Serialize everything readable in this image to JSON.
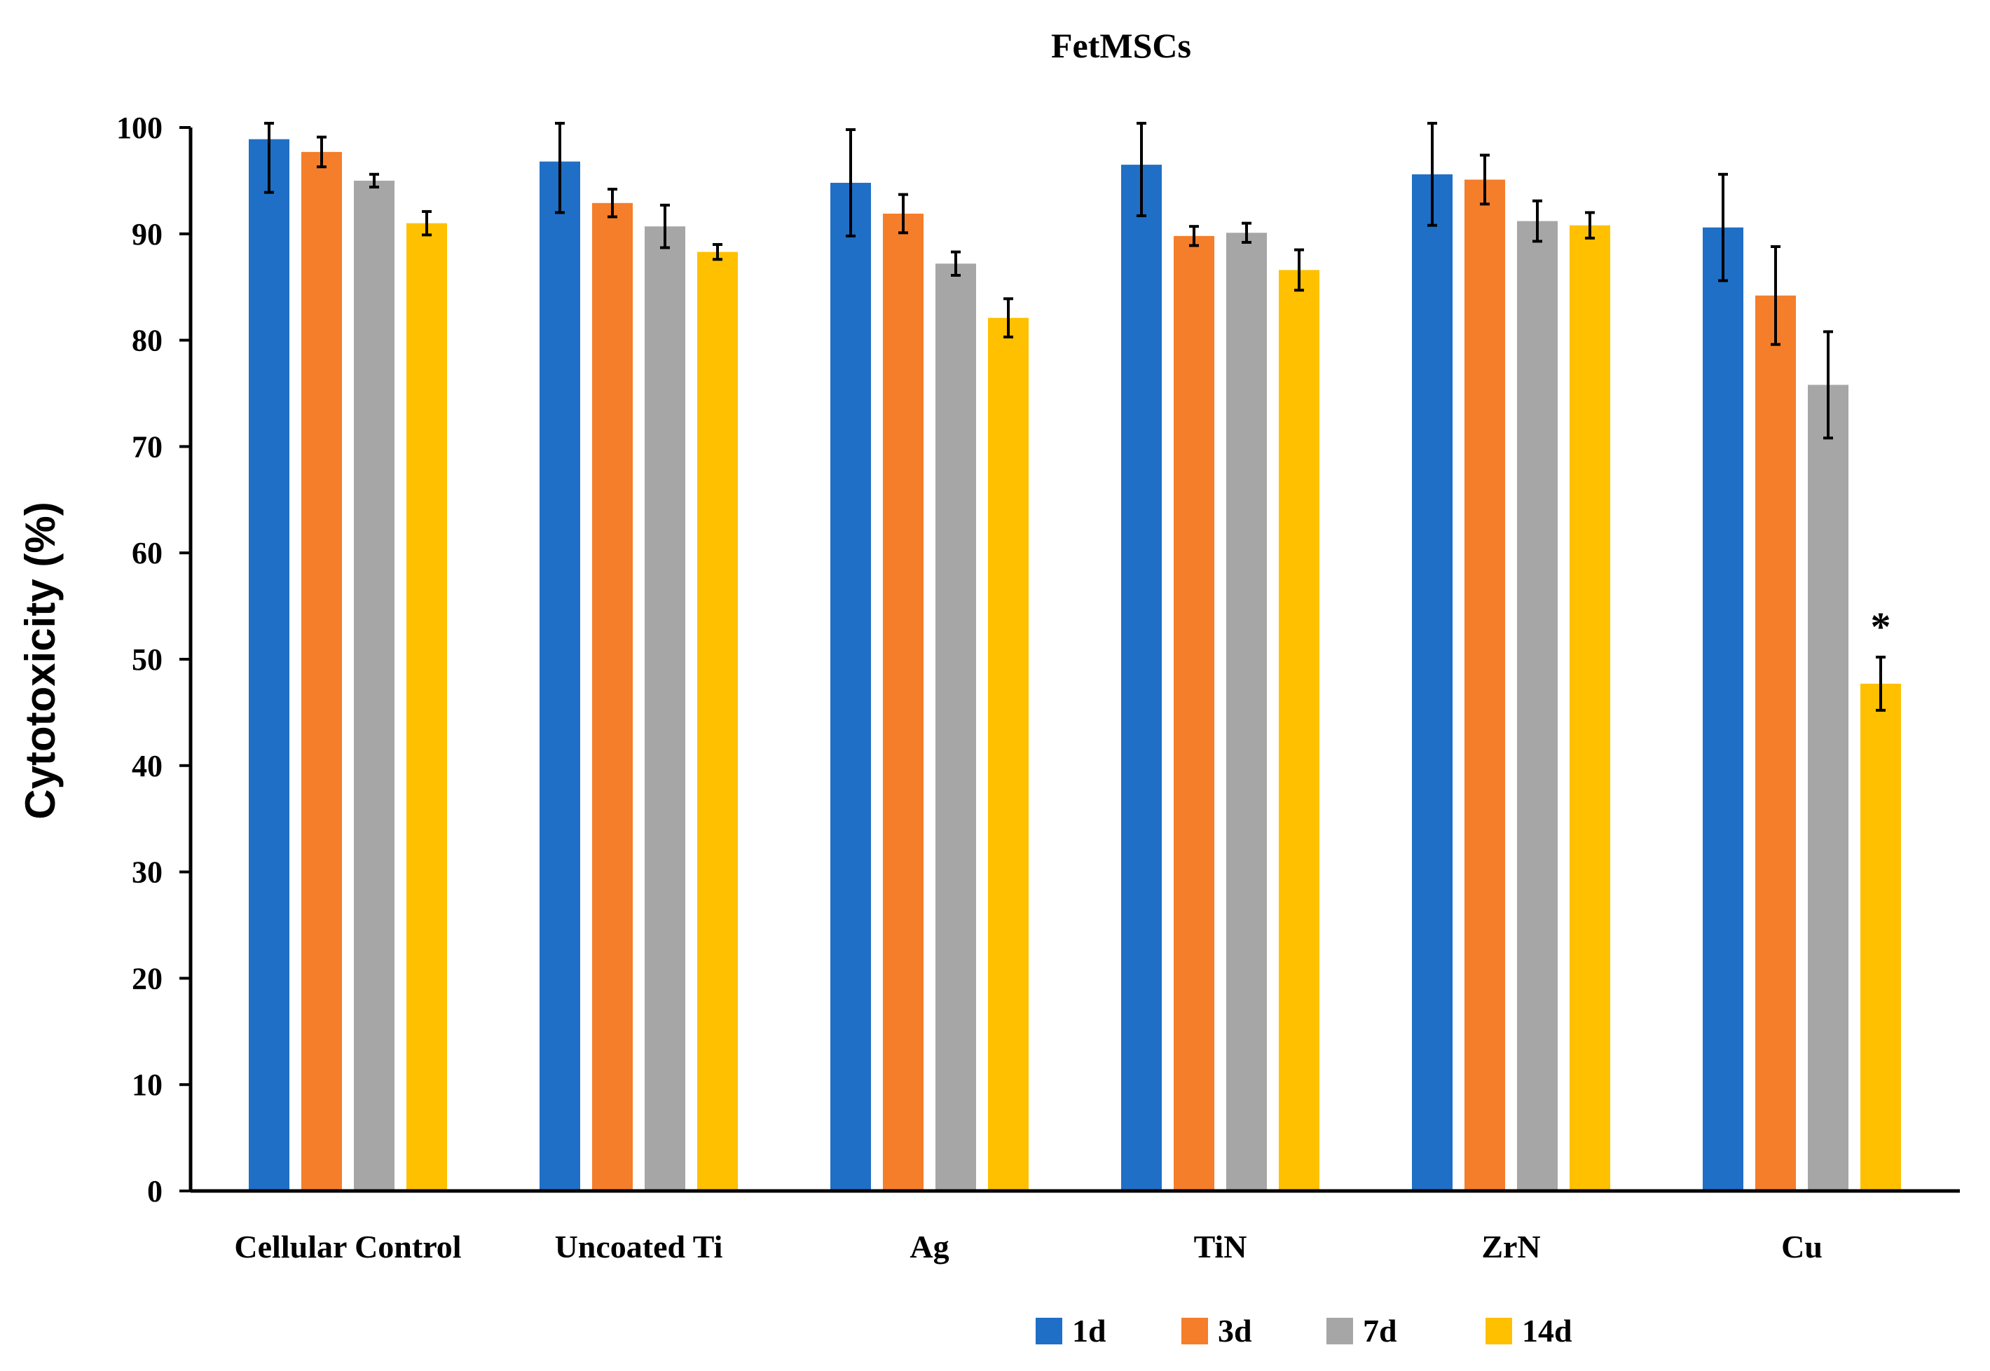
{
  "chart_data": {
    "type": "bar",
    "title": "FetMSCs",
    "xlabel": "",
    "ylabel": "Cytotoxicity (%)",
    "ylim": [
      0,
      100
    ],
    "yticks": [
      0,
      10,
      20,
      30,
      40,
      50,
      60,
      70,
      80,
      90,
      100
    ],
    "grid": false,
    "legend_position": "bottom",
    "categories": [
      "Cellular Control",
      "Uncoated Ti",
      "Ag",
      "TiN",
      "ZrN",
      "Cu"
    ],
    "series": [
      {
        "name": "1d",
        "color": "#1F6FC6",
        "values": [
          98.9,
          96.8,
          94.8,
          96.5,
          95.6,
          90.6
        ],
        "errors": [
          5.0,
          4.8,
          5.0,
          4.8,
          4.8,
          5.0
        ]
      },
      {
        "name": "3d",
        "color": "#F57E2B",
        "values": [
          97.7,
          92.9,
          91.9,
          89.8,
          95.1,
          84.2
        ],
        "errors": [
          1.4,
          1.3,
          1.8,
          0.9,
          2.3,
          4.6
        ]
      },
      {
        "name": "7d",
        "color": "#A6A6A6",
        "values": [
          95.0,
          90.7,
          87.2,
          90.1,
          91.2,
          75.8
        ],
        "errors": [
          0.6,
          2.0,
          1.1,
          0.9,
          1.9,
          5.0
        ]
      },
      {
        "name": "14d",
        "color": "#FFC000",
        "values": [
          91.0,
          88.3,
          82.1,
          86.6,
          90.8,
          47.7
        ],
        "errors": [
          1.1,
          0.7,
          1.8,
          1.9,
          1.2,
          2.5
        ]
      }
    ],
    "annotations": [
      {
        "text": "*",
        "category": "Cu",
        "series": "14d"
      }
    ]
  }
}
